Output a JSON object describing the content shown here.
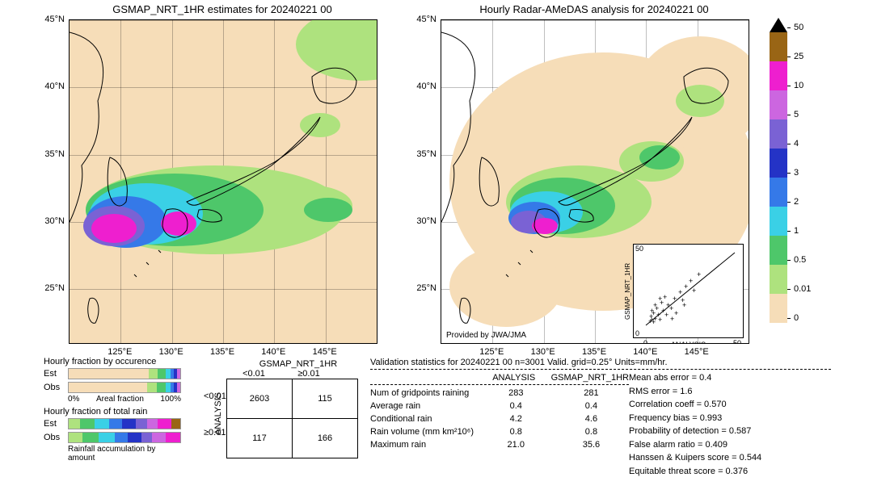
{
  "map1": {
    "title": "GSMAP_NRT_1HR estimates for 20240221 00",
    "xticks": [
      "125°E",
      "130°E",
      "135°E",
      "140°E",
      "145°E"
    ],
    "yticks": [
      "45°N",
      "40°N",
      "35°N",
      "30°N",
      "25°N"
    ],
    "bg_color": "#f6ddb8"
  },
  "map2": {
    "title": "Hourly Radar-AMeDAS analysis for 20240221 00",
    "xticks": [
      "125°E",
      "130°E",
      "135°E",
      "140°E",
      "145°E"
    ],
    "yticks": [
      "45°N",
      "40°N",
      "35°N",
      "30°N",
      "25°N"
    ],
    "provided_by": "Provided by JWA/JMA",
    "scatter": {
      "xmax": 50,
      "ymax": 50,
      "xlabel": "ANALYSIS",
      "ylabel": "GSMAP_NRT_1HR"
    }
  },
  "colorbar": {
    "ticks": [
      "50",
      "25",
      "10",
      "5",
      "4",
      "3",
      "2",
      "1",
      "0.5",
      "0.01",
      "0"
    ],
    "colors_top_to_bottom": [
      "#996515",
      "#ee1fcf",
      "#cc66e0",
      "#7a62d4",
      "#2433c6",
      "#3579e8",
      "#3ad0e6",
      "#4ec76a",
      "#aee27e",
      "#f6ddb8",
      "#ffffff"
    ]
  },
  "occurrence": {
    "title": "Hourly fraction by occurence",
    "est": [
      {
        "c": "#f6ddb8",
        "w": 72
      },
      {
        "c": "#aee27e",
        "w": 8
      },
      {
        "c": "#4ec76a",
        "w": 7
      },
      {
        "c": "#3ad0e6",
        "w": 4
      },
      {
        "c": "#3579e8",
        "w": 3
      },
      {
        "c": "#2433c6",
        "w": 3
      },
      {
        "c": "#cc66e0",
        "w": 3
      }
    ],
    "obs": [
      {
        "c": "#f6ddb8",
        "w": 70
      },
      {
        "c": "#aee27e",
        "w": 9
      },
      {
        "c": "#4ec76a",
        "w": 8
      },
      {
        "c": "#3ad0e6",
        "w": 4
      },
      {
        "c": "#3579e8",
        "w": 3
      },
      {
        "c": "#2433c6",
        "w": 3
      },
      {
        "c": "#cc66e0",
        "w": 3
      }
    ],
    "axis_l": "0%",
    "axis_label": "Areal fraction",
    "axis_r": "100%"
  },
  "total": {
    "title": "Hourly fraction of total rain",
    "est": [
      {
        "c": "#aee27e",
        "w": 10
      },
      {
        "c": "#4ec76a",
        "w": 13
      },
      {
        "c": "#3ad0e6",
        "w": 13
      },
      {
        "c": "#3579e8",
        "w": 12
      },
      {
        "c": "#2433c6",
        "w": 12
      },
      {
        "c": "#7a62d4",
        "w": 10
      },
      {
        "c": "#cc66e0",
        "w": 10
      },
      {
        "c": "#ee1fcf",
        "w": 12
      },
      {
        "c": "#996515",
        "w": 8
      }
    ],
    "obs": [
      {
        "c": "#aee27e",
        "w": 12
      },
      {
        "c": "#4ec76a",
        "w": 15
      },
      {
        "c": "#3ad0e6",
        "w": 14
      },
      {
        "c": "#3579e8",
        "w": 12
      },
      {
        "c": "#2433c6",
        "w": 12
      },
      {
        "c": "#7a62d4",
        "w": 10
      },
      {
        "c": "#cc66e0",
        "w": 12
      },
      {
        "c": "#ee1fcf",
        "w": 13
      }
    ],
    "bottom": "Rainfall accumulation by amount"
  },
  "confusion": {
    "col_header": "GSMAP_NRT_1HR",
    "row_header": "ANALYSIS",
    "cols": [
      "<0.01",
      "≥0.01"
    ],
    "rows": [
      "<0.01",
      "≥0.01"
    ],
    "cells": [
      [
        "2603",
        "115"
      ],
      [
        "117",
        "166"
      ]
    ]
  },
  "validation": {
    "header": "Validation statistics for 20240221 00  n=3001 Valid. grid=0.25°  Units=mm/hr.",
    "col1": "ANALYSIS",
    "col2": "GSMAP_NRT_1HR",
    "rows": [
      {
        "label": "Num of gridpoints raining",
        "a": "283",
        "b": "281"
      },
      {
        "label": "Average rain",
        "a": "0.4",
        "b": "0.4"
      },
      {
        "label": "Conditional rain",
        "a": "4.2",
        "b": "4.6"
      },
      {
        "label": "Rain volume (mm km²10⁶)",
        "a": "0.8",
        "b": "0.8"
      },
      {
        "label": "Maximum rain",
        "a": "21.0",
        "b": "35.6"
      }
    ],
    "scores": [
      "Mean abs error =    0.4",
      "RMS error =    1.6",
      "Correlation coeff =  0.570",
      "Frequency bias =  0.993",
      "Probability of detection =  0.587",
      "False alarm ratio =  0.409",
      "Hanssen & Kuipers score =  0.544",
      "Equitable threat score =  0.376"
    ]
  }
}
